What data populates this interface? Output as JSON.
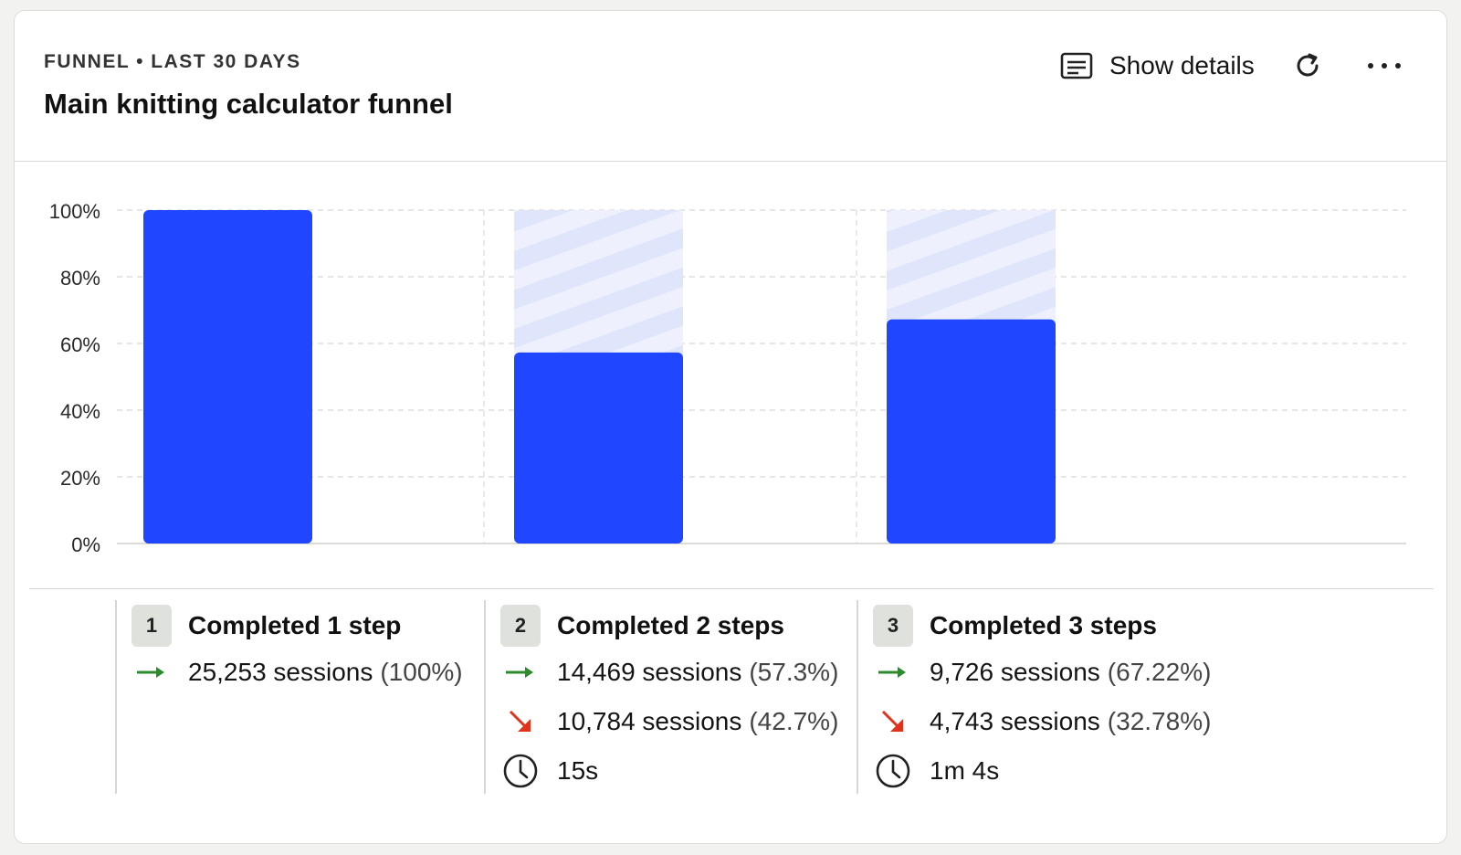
{
  "header": {
    "eyebrow": "FUNNEL • LAST 30 DAYS",
    "title": "Main knitting calculator funnel",
    "details_label": "Show details",
    "details_icon": "list-card-icon",
    "refresh_icon": "refresh-icon",
    "more_icon": "more-horizontal-icon"
  },
  "colors": {
    "bar": "#2047ff",
    "dropoff_stripe": "#dfe5fb",
    "continue_arrow": "#2e8a2e",
    "dropoff_arrow": "#e0321c"
  },
  "chart_data": {
    "type": "bar",
    "categories": [
      "1",
      "2",
      "3"
    ],
    "values": [
      100,
      57.3,
      67.22
    ],
    "yticks": [
      "0%",
      "20%",
      "40%",
      "60%",
      "80%",
      "100%"
    ],
    "ylim": [
      0,
      100
    ],
    "grid": true,
    "dropoff_shown_as_striped_remainder": true
  },
  "steps": [
    {
      "number": "1",
      "label": "Completed 1 step",
      "continued": {
        "sessions": "25,253 sessions",
        "percent": "(100%)"
      }
    },
    {
      "number": "2",
      "label": "Completed 2 steps",
      "continued": {
        "sessions": "14,469 sessions",
        "percent": "(57.3%)"
      },
      "dropped": {
        "sessions": "10,784 sessions",
        "percent": "(42.7%)"
      },
      "time": "15s"
    },
    {
      "number": "3",
      "label": "Completed 3 steps",
      "continued": {
        "sessions": "9,726 sessions",
        "percent": "(67.22%)"
      },
      "dropped": {
        "sessions": "4,743 sessions",
        "percent": "(32.78%)"
      },
      "time": "1m 4s"
    }
  ]
}
